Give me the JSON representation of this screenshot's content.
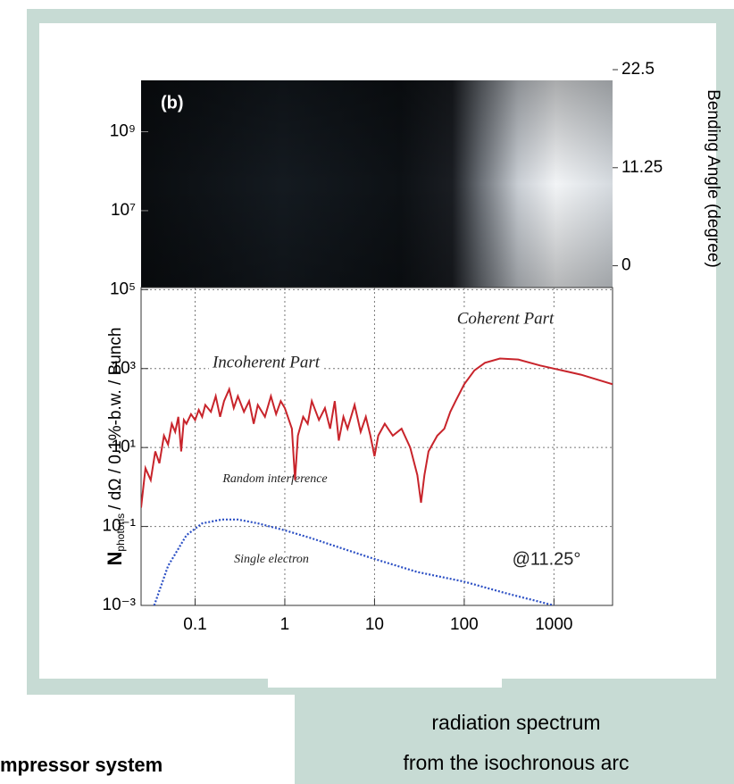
{
  "chart_data": {
    "type": "line",
    "y_label_parts": [
      "N",
      "photons",
      "/ dΩ / 0.1%-b.w. / Bunch"
    ],
    "y2_label": "Bending Angle  (degree)",
    "annotations": [
      "(b)",
      "Coherent Part",
      "Incoherent Part",
      "Random interference",
      "Single electron",
      "@11.25°"
    ],
    "xscale": "log",
    "yscale": "log",
    "grid": true,
    "xlim": [
      0.025,
      4500
    ],
    "xticks": [
      0.1,
      1,
      10,
      100,
      1000
    ],
    "ylim": [
      0.001,
      20000000000
    ],
    "yticks": [
      {
        "value": 0.001,
        "label": "10⁻³"
      },
      {
        "value": 0.1,
        "label": "10⁻¹"
      },
      {
        "value": 10,
        "label": "10¹"
      },
      {
        "value": 1000,
        "label": "10³"
      },
      {
        "value": 100000,
        "label": "10⁵"
      },
      {
        "value": 10000000,
        "label": "10⁷"
      },
      {
        "value": 1000000000,
        "label": "10⁹"
      }
    ],
    "y2lim": [
      -2.5,
      22.5
    ],
    "y2ticks": [
      0,
      11.25,
      22.5
    ],
    "series": [
      {
        "color": "#c8242b",
        "style": "solid",
        "x": [
          0.025,
          0.028,
          0.032,
          0.036,
          0.04,
          0.045,
          0.05,
          0.055,
          0.06,
          0.065,
          0.07,
          0.075,
          0.08,
          0.09,
          0.1,
          0.11,
          0.12,
          0.13,
          0.15,
          0.17,
          0.19,
          0.21,
          0.24,
          0.27,
          0.3,
          0.35,
          0.4,
          0.45,
          0.5,
          0.6,
          0.7,
          0.8,
          0.9,
          1.0,
          1.2,
          1.3,
          1.4,
          1.6,
          1.8,
          2.0,
          2.4,
          2.8,
          3.2,
          3.6,
          4.0,
          4.5,
          5,
          6,
          7,
          8,
          9,
          10,
          11,
          13,
          16,
          20,
          25,
          30,
          33,
          36,
          40,
          50,
          60,
          70,
          80,
          100,
          130,
          170,
          250,
          400,
          700,
          1000,
          2000,
          4500
        ],
        "values": [
          0.3,
          3,
          1.5,
          8,
          4,
          20,
          12,
          40,
          25,
          60,
          8,
          50,
          40,
          70,
          50,
          90,
          60,
          120,
          80,
          200,
          60,
          150,
          300,
          100,
          200,
          80,
          150,
          40,
          120,
          60,
          200,
          70,
          150,
          100,
          30,
          1.5,
          20,
          60,
          40,
          150,
          50,
          100,
          30,
          150,
          15,
          60,
          30,
          120,
          25,
          60,
          20,
          6,
          20,
          40,
          20,
          30,
          10,
          2,
          0.4,
          2,
          8,
          20,
          30,
          80,
          150,
          400,
          900,
          1400,
          1800,
          1700,
          1200,
          1000,
          700,
          400
        ]
      },
      {
        "color": "#2b4fc4",
        "style": "dotted",
        "x": [
          0.035,
          0.05,
          0.08,
          0.12,
          0.2,
          0.3,
          0.5,
          1,
          2,
          5,
          10,
          30,
          100,
          300,
          1000
        ],
        "values": [
          0.001,
          0.01,
          0.06,
          0.12,
          0.15,
          0.15,
          0.12,
          0.08,
          0.05,
          0.025,
          0.015,
          0.007,
          0.004,
          0.002,
          0.001
        ]
      }
    ]
  },
  "captions": {
    "left": "mpressor system",
    "right": [
      "radiation spectrum",
      "from the isochronous arc"
    ]
  }
}
